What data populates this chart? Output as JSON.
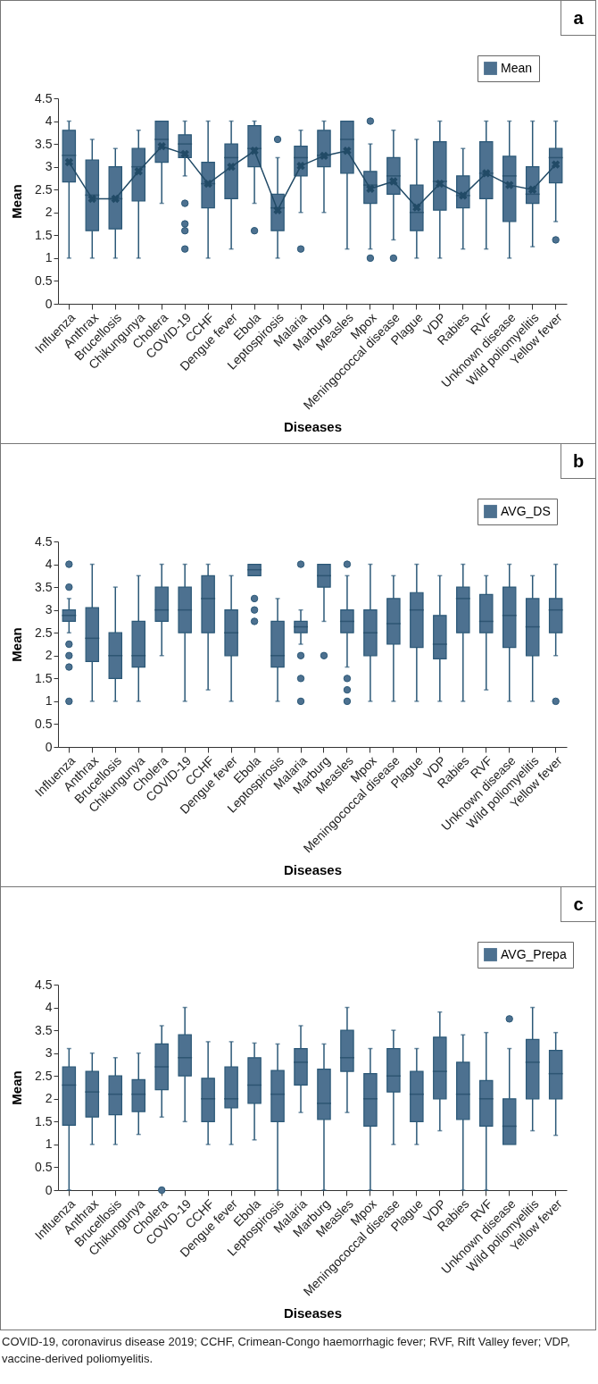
{
  "chart_data": [
    {
      "type": "box",
      "xlabel": "Diseases",
      "ylabel": "Mean",
      "annotations": [
        "a"
      ],
      "legend": "top right",
      "marker": "cross",
      "line_style": "solid",
      "ylim": [
        0,
        4.5
      ],
      "yticks": [
        0,
        0.5,
        1,
        1.5,
        2,
        2.5,
        3,
        3.5,
        4,
        4.5
      ],
      "categories": [
        "Influenza",
        "Anthrax",
        "Brucellosis",
        "Chikungunya",
        "Cholera",
        "COVID-19",
        "CCHF",
        "Dengue fever",
        "Ebola",
        "Leptospirosis",
        "Malaria",
        "Marburg",
        "Measles",
        "Mpox",
        "Meningococcal disease",
        "Plague",
        "VDP",
        "Rabies",
        "RVF",
        "Unknown disease",
        "Wild poliomyelitis",
        "Yellow fever"
      ],
      "series": [
        {
          "name": "Mean",
          "color": "#4d7190",
          "boxes": [
            {
              "low": 1,
              "q1": 2.67,
              "median": 3.25,
              "q3": 3.8,
              "high": 4
            },
            {
              "low": 1,
              "q1": 1.6,
              "median": 2.38,
              "q3": 3.15,
              "high": 3.6
            },
            {
              "low": 1,
              "q1": 1.64,
              "median": 2.3,
              "q3": 3,
              "high": 3.4
            },
            {
              "low": 1,
              "q1": 2.25,
              "median": 3,
              "q3": 3.4,
              "high": 3.8
            },
            {
              "low": 2.2,
              "q1": 3.1,
              "median": 3.6,
              "q3": 4,
              "high": 4
            },
            {
              "low": 2.8,
              "q1": 3.2,
              "median": 3.5,
              "q3": 3.7,
              "high": 4,
              "outliers": [
                2.2,
                1.75,
                1.6,
                1.2
              ]
            },
            {
              "low": 1,
              "q1": 2.1,
              "median": 2.63,
              "q3": 3.1,
              "high": 4
            },
            {
              "low": 1.2,
              "q1": 2.3,
              "median": 3.2,
              "q3": 3.5,
              "high": 4
            },
            {
              "low": 2.2,
              "q1": 3,
              "median": 3.4,
              "q3": 3.9,
              "high": 4,
              "outliers": [
                1.6
              ]
            },
            {
              "low": 1,
              "q1": 1.6,
              "median": 2.1,
              "q3": 2.4,
              "high": 3.2,
              "outliers": [
                3.6
              ]
            },
            {
              "low": 2,
              "q1": 2.8,
              "median": 3.2,
              "q3": 3.45,
              "high": 3.8,
              "outliers": [
                1.2
              ]
            },
            {
              "low": 2,
              "q1": 3,
              "median": 3.25,
              "q3": 3.8,
              "high": 4
            },
            {
              "low": 1.2,
              "q1": 2.86,
              "median": 3.6,
              "q3": 4,
              "high": 4
            },
            {
              "low": 1.2,
              "q1": 2.2,
              "median": 2.6,
              "q3": 2.9,
              "high": 3.5,
              "outliers": [
                4,
                1
              ]
            },
            {
              "low": 1.4,
              "q1": 2.4,
              "median": 2.8,
              "q3": 3.2,
              "high": 3.8,
              "outliers": [
                1
              ]
            },
            {
              "low": 1,
              "q1": 1.6,
              "median": 2,
              "q3": 2.6,
              "high": 3.6
            },
            {
              "low": 1,
              "q1": 2.05,
              "median": 2.68,
              "q3": 3.55,
              "high": 4
            },
            {
              "low": 1.2,
              "q1": 2.1,
              "median": 2.37,
              "q3": 2.8,
              "high": 3.4
            },
            {
              "low": 1.2,
              "q1": 2.3,
              "median": 2.86,
              "q3": 3.55,
              "high": 4
            },
            {
              "low": 1,
              "q1": 1.8,
              "median": 2.8,
              "q3": 3.23,
              "high": 4
            },
            {
              "low": 1.25,
              "q1": 2.2,
              "median": 2.4,
              "q3": 3,
              "high": 4
            },
            {
              "low": 1.8,
              "q1": 2.65,
              "median": 3.2,
              "q3": 3.4,
              "high": 4,
              "outliers": [
                1.4
              ]
            }
          ]
        },
        {
          "type": "line",
          "color": "#214a66",
          "values": [
            3.1,
            2.3,
            2.3,
            2.9,
            3.45,
            3.28,
            2.63,
            3,
            3.35,
            2.05,
            3.02,
            3.24,
            3.35,
            2.52,
            2.68,
            2.11,
            2.63,
            2.37,
            2.86,
            2.6,
            2.5,
            3.05
          ]
        }
      ]
    },
    {
      "type": "box",
      "xlabel": "Diseases",
      "ylabel": "Mean",
      "annotations": [
        "b"
      ],
      "legend": "top right",
      "ylim": [
        0,
        4.5
      ],
      "yticks": [
        0,
        0.5,
        1,
        1.5,
        2,
        2.5,
        3,
        3.5,
        4,
        4.5
      ],
      "categories": [
        "Influenza",
        "Anthrax",
        "Brucellosis",
        "Chikungunya",
        "Cholera",
        "COVID-19",
        "CCHF",
        "Dengue fever",
        "Ebola",
        "Leptospirosis",
        "Malaria",
        "Marburg",
        "Measles",
        "Mpox",
        "Meningococcal disease",
        "Plague",
        "VDP",
        "Rabies",
        "RVF",
        "Unknown disease",
        "Wild poliomyelitis",
        "Yellow fever"
      ],
      "series": [
        {
          "name": "AVG_DS",
          "color": "#4d7190",
          "boxes": [
            {
              "low": 2.5,
              "q1": 2.75,
              "median": 2.88,
              "q3": 3,
              "high": 3.25,
              "outliers": [
                4,
                3.5,
                2.25,
                2,
                1.75,
                1
              ]
            },
            {
              "low": 1,
              "q1": 1.87,
              "median": 2.38,
              "q3": 3.05,
              "high": 4
            },
            {
              "low": 1,
              "q1": 1.5,
              "median": 2,
              "q3": 2.5,
              "high": 3.5
            },
            {
              "low": 1,
              "q1": 1.75,
              "median": 2,
              "q3": 2.75,
              "high": 3.75
            },
            {
              "low": 2,
              "q1": 2.75,
              "median": 3,
              "q3": 3.5,
              "high": 4
            },
            {
              "low": 1,
              "q1": 2.5,
              "median": 3,
              "q3": 3.5,
              "high": 4
            },
            {
              "low": 1.25,
              "q1": 2.5,
              "median": 3.25,
              "q3": 3.75,
              "high": 4
            },
            {
              "low": 1,
              "q1": 2,
              "median": 2.5,
              "q3": 3,
              "high": 3.75
            },
            {
              "low": 3.75,
              "q1": 3.75,
              "median": 3.88,
              "q3": 4,
              "high": 4,
              "outliers": [
                3.25,
                3,
                2.75
              ]
            },
            {
              "low": 1,
              "q1": 1.75,
              "median": 2,
              "q3": 2.75,
              "high": 3.25
            },
            {
              "low": 2.25,
              "q1": 2.5,
              "median": 2.63,
              "q3": 2.75,
              "high": 3,
              "outliers": [
                4,
                2,
                1.5,
                1
              ]
            },
            {
              "low": 2.75,
              "q1": 3.5,
              "median": 3.75,
              "q3": 4,
              "high": 4,
              "outliers": [
                2
              ]
            },
            {
              "low": 1.75,
              "q1": 2.5,
              "median": 2.75,
              "q3": 3,
              "high": 3.75,
              "outliers": [
                4,
                1.5,
                1.25,
                1
              ]
            },
            {
              "low": 1,
              "q1": 2,
              "median": 2.5,
              "q3": 3,
              "high": 4
            },
            {
              "low": 1,
              "q1": 2.25,
              "median": 2.7,
              "q3": 3.25,
              "high": 3.75
            },
            {
              "low": 1,
              "q1": 2.18,
              "median": 3,
              "q3": 3.38,
              "high": 4
            },
            {
              "low": 1,
              "q1": 1.93,
              "median": 2.25,
              "q3": 2.88,
              "high": 3.75
            },
            {
              "low": 1,
              "q1": 2.5,
              "median": 3.25,
              "q3": 3.5,
              "high": 4
            },
            {
              "low": 1.25,
              "q1": 2.5,
              "median": 2.75,
              "q3": 3.34,
              "high": 3.75
            },
            {
              "low": 1,
              "q1": 2.18,
              "median": 2.88,
              "q3": 3.5,
              "high": 4
            },
            {
              "low": 1,
              "q1": 2,
              "median": 2.63,
              "q3": 3.25,
              "high": 3.75
            },
            {
              "low": 2,
              "q1": 2.5,
              "median": 3,
              "q3": 3.25,
              "high": 4,
              "outliers": [
                1
              ]
            }
          ]
        }
      ]
    },
    {
      "type": "box",
      "xlabel": "Diseases",
      "ylabel": "Mean",
      "annotations": [
        "c",
        "COVID-19, coronavirus disease 2019; CCHF, Crimean-Congo haemorrhagic fever; RVF, Rift Valley fever; VDP, vaccine-derived poliomyelitis."
      ],
      "legend": "top right",
      "ylim": [
        0,
        4.5
      ],
      "yticks": [
        0,
        0.5,
        1,
        1.5,
        2,
        2.5,
        3,
        3.5,
        4,
        4.5
      ],
      "categories": [
        "Influenza",
        "Anthrax",
        "Brucellosis",
        "Chikungunya",
        "Cholera",
        "COVID-19",
        "CCHF",
        "Dengue fever",
        "Ebola",
        "Leptospirosis",
        "Malaria",
        "Marburg",
        "Measles",
        "Mpox",
        "Meningococcal disease",
        "Plague",
        "VDP",
        "Rabies",
        "RVF",
        "Unknown disease",
        "Wild poliomyelitis",
        "Yellow fever"
      ],
      "series": [
        {
          "name": "AVG_Prepa",
          "color": "#4d7190",
          "boxes": [
            {
              "low": 0,
              "q1": 1.42,
              "median": 2.3,
              "q3": 2.7,
              "high": 3.1
            },
            {
              "low": 1,
              "q1": 1.6,
              "median": 2.15,
              "q3": 2.6,
              "high": 3
            },
            {
              "low": 1,
              "q1": 1.65,
              "median": 2.1,
              "q3": 2.5,
              "high": 2.9
            },
            {
              "low": 1.22,
              "q1": 1.72,
              "median": 2.1,
              "q3": 2.42,
              "high": 3
            },
            {
              "low": 1.6,
              "q1": 2.2,
              "median": 2.7,
              "q3": 3.2,
              "high": 3.6,
              "outliers": [
                0
              ]
            },
            {
              "low": 1.5,
              "q1": 2.5,
              "median": 2.9,
              "q3": 3.4,
              "high": 4
            },
            {
              "low": 1,
              "q1": 1.5,
              "median": 2,
              "q3": 2.45,
              "high": 3.25
            },
            {
              "low": 1,
              "q1": 1.8,
              "median": 2,
              "q3": 2.7,
              "high": 3.25
            },
            {
              "low": 1.1,
              "q1": 1.9,
              "median": 2.3,
              "q3": 2.9,
              "high": 3.22
            },
            {
              "low": 0,
              "q1": 1.5,
              "median": 2.1,
              "q3": 2.62,
              "high": 3.2
            },
            {
              "low": 1.7,
              "q1": 2.3,
              "median": 2.8,
              "q3": 3.1,
              "high": 3.6
            },
            {
              "low": 0,
              "q1": 1.55,
              "median": 1.9,
              "q3": 2.65,
              "high": 3.2
            },
            {
              "low": 1.7,
              "q1": 2.6,
              "median": 2.9,
              "q3": 3.5,
              "high": 4
            },
            {
              "low": 0,
              "q1": 1.4,
              "median": 2,
              "q3": 2.55,
              "high": 3.1
            },
            {
              "low": 1,
              "q1": 2.15,
              "median": 2.5,
              "q3": 3.1,
              "high": 3.5
            },
            {
              "low": 1,
              "q1": 1.5,
              "median": 2.1,
              "q3": 2.6,
              "high": 3.1
            },
            {
              "low": 1.3,
              "q1": 2,
              "median": 2.6,
              "q3": 3.35,
              "high": 3.9
            },
            {
              "low": 0,
              "q1": 1.55,
              "median": 2.1,
              "q3": 2.8,
              "high": 3.4
            },
            {
              "low": 0,
              "q1": 1.4,
              "median": 2,
              "q3": 2.4,
              "high": 3.45
            },
            {
              "low": 1,
              "q1": 1,
              "median": 1.4,
              "q3": 2,
              "high": 3.1,
              "outliers": [
                3.75
              ]
            },
            {
              "low": 1.3,
              "q1": 2,
              "median": 2.8,
              "q3": 3.3,
              "high": 4
            },
            {
              "low": 1.2,
              "q1": 2,
              "median": 2.55,
              "q3": 3.06,
              "high": 3.45
            }
          ]
        }
      ]
    }
  ]
}
